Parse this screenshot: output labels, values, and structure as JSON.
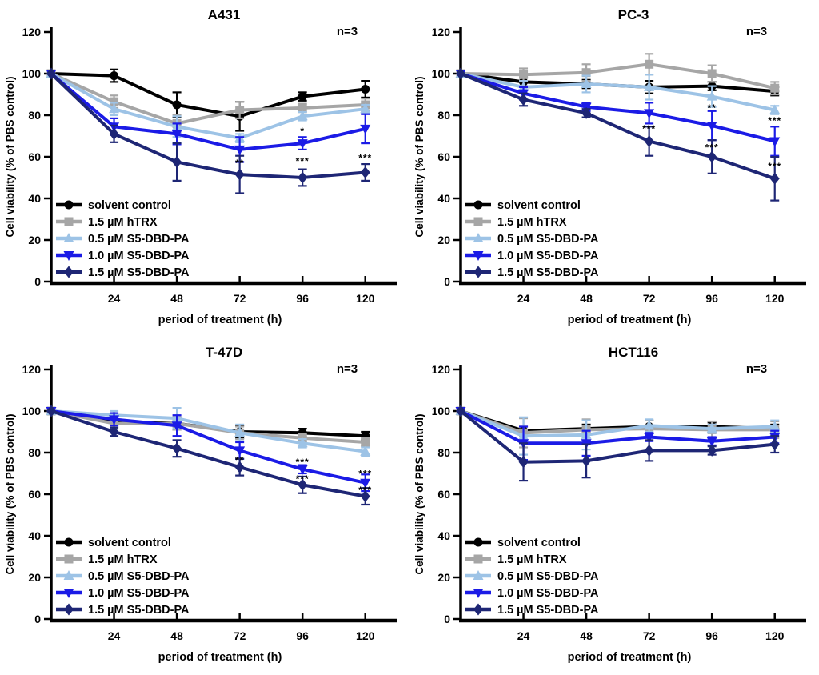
{
  "figure": {
    "n_label": "n=3",
    "x_tick_labels": [
      "24",
      "48",
      "72",
      "96",
      "120"
    ],
    "x_tick_hours": [
      24,
      48,
      72,
      96,
      120
    ],
    "y_tick_labels": [
      "0",
      "20",
      "40",
      "60",
      "80",
      "100",
      "120"
    ],
    "y_tick_values": [
      0,
      20,
      40,
      60,
      80,
      100,
      120
    ],
    "legend": [
      {
        "label": "solvent control",
        "color": "#000000",
        "marker": "circle"
      },
      {
        "label": "1.5 µM hTRX",
        "color": "#a6a6a6",
        "marker": "square"
      },
      {
        "label": "0.5 µM S5-DBD-PA",
        "color": "#9dc3e6",
        "marker": "triangle-up"
      },
      {
        "label": "1.0 µM S5-DBD-PA",
        "color": "#1b1be6",
        "marker": "triangle-down"
      },
      {
        "label": "1.5 µM S5-DBD-PA",
        "color": "#1e2675",
        "marker": "diamond"
      }
    ]
  },
  "chart_data": [
    {
      "type": "line",
      "title": "A431",
      "xlabel": "period of treatment (h)",
      "ylabel": "Cell viability (% of PBS control)",
      "x": [
        0,
        24,
        48,
        72,
        96,
        120
      ],
      "xlim": [
        0,
        132
      ],
      "ylim": [
        0,
        120
      ],
      "grid": false,
      "legend_position": "lower-left",
      "series": [
        {
          "name": "solvent control",
          "values": [
            100,
            99,
            85,
            79.5,
            89,
            92.5
          ],
          "errors": [
            0,
            3,
            6,
            7,
            2,
            4
          ]
        },
        {
          "name": "1.5 µM hTRX",
          "values": [
            100,
            86.5,
            76,
            82.5,
            83.5,
            85
          ],
          "errors": [
            0,
            3,
            4,
            4,
            2,
            3
          ]
        },
        {
          "name": "0.5 µM S5-DBD-PA",
          "values": [
            100,
            83,
            74.5,
            69,
            79.5,
            83
          ],
          "errors": [
            0,
            3,
            5,
            2,
            2,
            2
          ]
        },
        {
          "name": "1.0 µM S5-DBD-PA",
          "values": [
            100,
            74.5,
            71,
            63.5,
            66.5,
            73.5
          ],
          "errors": [
            0,
            4,
            5,
            6,
            3,
            7
          ]
        },
        {
          "name": "1.5 µM S5-DBD-PA",
          "values": [
            100,
            71,
            57.5,
            51.5,
            50,
            52.5
          ],
          "errors": [
            0,
            4,
            9,
            9,
            4,
            4
          ]
        }
      ],
      "annotations": [
        {
          "x": 72,
          "y": 56.5,
          "text": "**"
        },
        {
          "x": 96,
          "y": 72,
          "text": "*"
        },
        {
          "x": 96,
          "y": 57.5,
          "text": "***"
        },
        {
          "x": 120,
          "y": 59,
          "text": "***"
        }
      ]
    },
    {
      "type": "line",
      "title": "PC-3",
      "xlabel": "period of treatment (h)",
      "ylabel": "Cell viability (% of PBS control)",
      "x": [
        0,
        24,
        48,
        72,
        96,
        120
      ],
      "xlim": [
        0,
        132
      ],
      "ylim": [
        0,
        120
      ],
      "grid": false,
      "legend_position": "lower-left",
      "series": [
        {
          "name": "solvent control",
          "values": [
            100,
            96,
            95,
            93.5,
            94,
            91.5
          ],
          "errors": [
            0,
            2,
            2,
            3,
            2,
            2
          ]
        },
        {
          "name": "1.5 µM hTRX",
          "values": [
            100,
            99.5,
            100.5,
            104.5,
            100,
            93
          ],
          "errors": [
            0,
            3,
            4,
            5,
            4,
            3
          ]
        },
        {
          "name": "0.5 µM S5-DBD-PA",
          "values": [
            100,
            93.5,
            95,
            93.5,
            89,
            82.5
          ],
          "errors": [
            0,
            3,
            4,
            6,
            5,
            2
          ]
        },
        {
          "name": "1.0 µM S5-DBD-PA",
          "values": [
            100,
            90.5,
            84,
            81,
            75,
            67.5
          ],
          "errors": [
            0,
            3,
            2,
            5,
            7,
            7
          ]
        },
        {
          "name": "1.5 µM S5-DBD-PA",
          "values": [
            100,
            87.5,
            81,
            67.5,
            60,
            49.5
          ],
          "errors": [
            0,
            3,
            2,
            7,
            8,
            10.5
          ]
        }
      ],
      "annotations": [
        {
          "x": 72,
          "y": 73,
          "text": "***"
        },
        {
          "x": 96,
          "y": 83,
          "text": "**"
        },
        {
          "x": 96,
          "y": 64,
          "text": "***"
        },
        {
          "x": 120,
          "y": 77,
          "text": "***"
        },
        {
          "x": 120,
          "y": 55,
          "text": "***"
        }
      ]
    },
    {
      "type": "line",
      "title": "T-47D",
      "xlabel": "period of treatment (h)",
      "ylabel": "Cell viability (% of PBS control)",
      "x": [
        0,
        24,
        48,
        72,
        96,
        120
      ],
      "xlim": [
        0,
        132
      ],
      "ylim": [
        0,
        120
      ],
      "grid": false,
      "legend_position": "lower-left",
      "series": [
        {
          "name": "solvent control",
          "values": [
            100,
            95,
            94,
            90,
            89.5,
            88
          ],
          "errors": [
            0,
            2,
            3,
            3,
            2,
            2
          ]
        },
        {
          "name": "1.5 µM hTRX",
          "values": [
            100,
            94,
            94,
            89.5,
            87,
            85
          ],
          "errors": [
            0,
            2,
            3,
            3,
            2,
            2
          ]
        },
        {
          "name": "0.5 µM S5-DBD-PA",
          "values": [
            100,
            98,
            96.5,
            89.5,
            84.5,
            80.5
          ],
          "errors": [
            0,
            2,
            5,
            4,
            2,
            2
          ]
        },
        {
          "name": "1.0 µM S5-DBD-PA",
          "values": [
            100,
            96,
            93,
            81,
            72,
            65.5
          ],
          "errors": [
            0,
            3,
            5,
            4,
            2,
            4
          ]
        },
        {
          "name": "1.5 µM S5-DBD-PA",
          "values": [
            100,
            90,
            82,
            73,
            64.5,
            59
          ],
          "errors": [
            0,
            2,
            4,
            4,
            4,
            4
          ]
        }
      ],
      "annotations": [
        {
          "x": 72,
          "y": 76,
          "text": "**"
        },
        {
          "x": 96,
          "y": 75,
          "text": "***"
        },
        {
          "x": 96,
          "y": 67,
          "text": "***"
        },
        {
          "x": 120,
          "y": 69.5,
          "text": "***"
        },
        {
          "x": 120,
          "y": 61.5,
          "text": "***"
        }
      ]
    },
    {
      "type": "line",
      "title": "HCT116",
      "xlabel": "period of treatment (h)",
      "ylabel": "Cell viability (% of PBS control)",
      "x": [
        0,
        24,
        48,
        72,
        96,
        120
      ],
      "xlim": [
        0,
        132
      ],
      "ylim": [
        0,
        120
      ],
      "grid": false,
      "legend_position": "lower-left",
      "series": [
        {
          "name": "solvent control",
          "values": [
            100,
            90.5,
            91.5,
            92.5,
            92.5,
            91.5
          ],
          "errors": [
            0,
            2,
            2,
            3,
            2,
            2
          ]
        },
        {
          "name": "1.5 µM hTRX",
          "values": [
            100,
            89.5,
            91,
            91.5,
            91,
            91
          ],
          "errors": [
            0,
            7,
            5,
            4,
            4,
            4
          ]
        },
        {
          "name": "0.5 µM S5-DBD-PA",
          "values": [
            100,
            88,
            88.5,
            93,
            91.5,
            92.5
          ],
          "errors": [
            0,
            9,
            7,
            3,
            2,
            3
          ]
        },
        {
          "name": "1.0 µM S5-DBD-PA",
          "values": [
            100,
            84.5,
            84.5,
            87.5,
            85.5,
            87.5
          ],
          "errors": [
            0,
            8,
            6,
            2,
            2,
            3
          ]
        },
        {
          "name": "1.5 µM S5-DBD-PA",
          "values": [
            100,
            75.5,
            76,
            81,
            81,
            84
          ],
          "errors": [
            0,
            9,
            8,
            5,
            2,
            4
          ]
        }
      ],
      "annotations": []
    }
  ]
}
